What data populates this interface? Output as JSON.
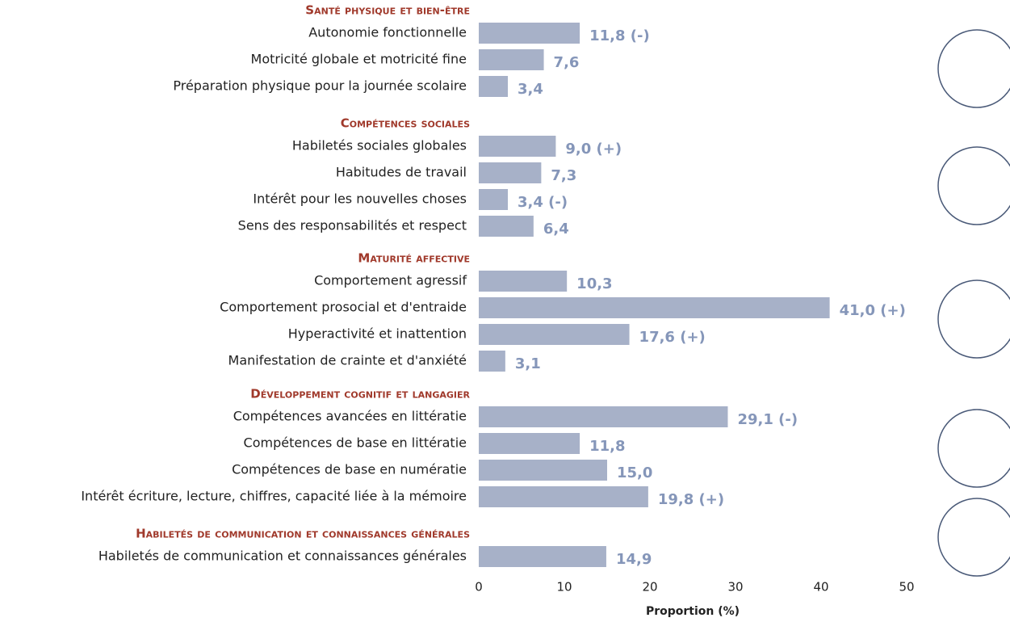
{
  "chart_data": {
    "type": "bar",
    "orientation": "horizontal",
    "color": "#a7b1c8",
    "label_color": "#8596b9",
    "header_color": "#a0392b",
    "groups": [
      {
        "title": "Santé physique et bien-être",
        "categories": [
          "Autonomie fonctionnelle",
          "Motricité globale et motricité fine",
          "Préparation physique pour la journée scolaire"
        ],
        "values": [
          11.8,
          7.6,
          3.4
        ],
        "value_labels": [
          "11,8 (-)",
          "7,6",
          "3,4"
        ]
      },
      {
        "title": "Compétences sociales",
        "categories": [
          "Habiletés sociales globales",
          "Habitudes de travail",
          "Intérêt pour les nouvelles choses",
          "Sens des responsabilités et respect"
        ],
        "values": [
          9.0,
          7.3,
          3.4,
          6.4
        ],
        "value_labels": [
          "9,0 (+)",
          "7,3",
          "3,4 (-)",
          "6,4"
        ]
      },
      {
        "title": "Maturité affective",
        "categories": [
          "Comportement agressif",
          "Comportement prosocial et d'entraide",
          "Hyperactivité et inattention",
          "Manifestation de crainte et d'anxiété"
        ],
        "values": [
          10.3,
          41.0,
          17.6,
          3.1
        ],
        "value_labels": [
          "10,3",
          "41,0 (+)",
          "17,6 (+)",
          "3,1"
        ]
      },
      {
        "title": "Développement cognitif et langagier",
        "categories": [
          "Compétences avancées en littératie",
          "Compétences de base en littératie",
          "Compétences de base en numératie",
          "Intérêt écriture, lecture, chiffres, capacité liée à la mémoire"
        ],
        "values": [
          29.1,
          11.8,
          15.0,
          19.8
        ],
        "value_labels": [
          "29,1 (-)",
          "11,8",
          "15,0",
          "19,8 (+)"
        ]
      },
      {
        "title": "Habiletés de communication et connaissances générales",
        "categories": [
          "Habiletés de communication et connaissances générales"
        ],
        "values": [
          14.9
        ],
        "value_labels": [
          "14,9"
        ]
      }
    ],
    "xlabel": "Proportion (%)",
    "xlim": [
      0,
      50
    ],
    "xticks": [
      0,
      10,
      20,
      30,
      40,
      50
    ],
    "grid": false
  }
}
